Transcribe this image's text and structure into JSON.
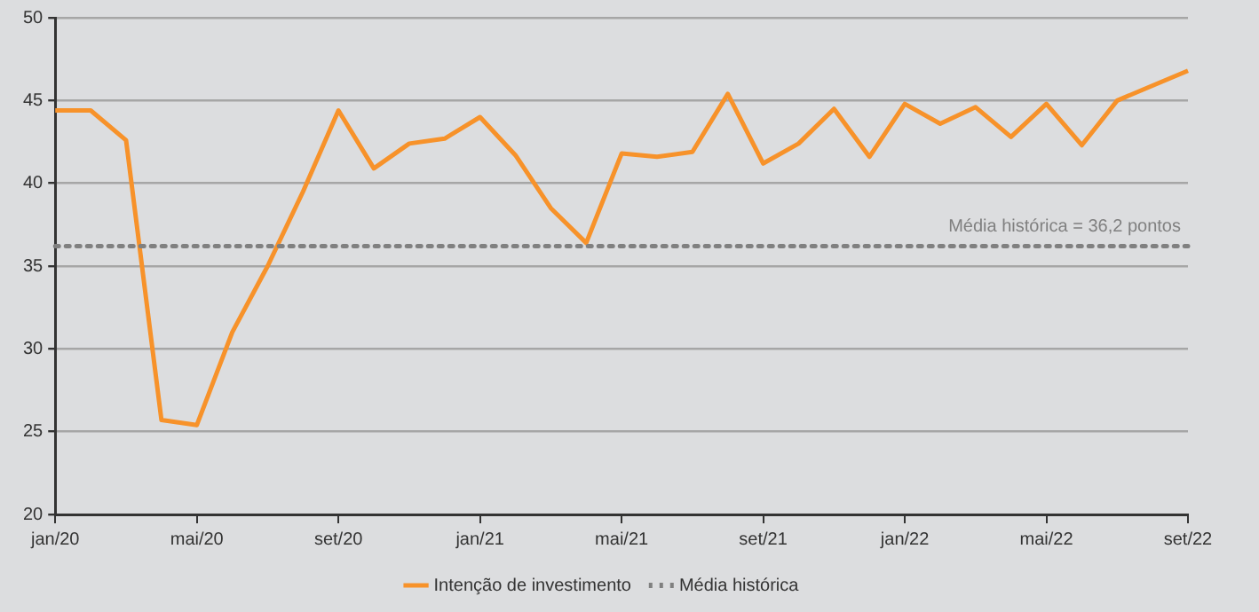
{
  "chart_data": {
    "type": "line",
    "categories": [
      "jan/20",
      null,
      null,
      null,
      "mai/20",
      null,
      null,
      null,
      "set/20",
      null,
      null,
      null,
      "jan/21",
      null,
      null,
      null,
      "mai/21",
      null,
      null,
      null,
      "set/21",
      null,
      null,
      null,
      "jan/22",
      null,
      null,
      null,
      "mai/22",
      null,
      null,
      null,
      "set/22"
    ],
    "series": [
      {
        "name": "Intenção de investimento",
        "color": "#f7922a",
        "values": [
          44.4,
          44.4,
          42.6,
          25.7,
          25.4,
          31,
          35,
          39.5,
          44.4,
          40.9,
          42.4,
          42.7,
          44.0,
          41.7,
          38.5,
          36.4,
          41.8,
          41.6,
          41.9,
          45.4,
          41.2,
          42.4,
          44.5,
          41.6,
          44.8,
          43.6,
          44.6,
          42.8,
          44.8,
          42.3,
          45.0,
          45.9,
          46.8
        ]
      }
    ],
    "ylim": [
      20,
      50
    ],
    "yticks": [
      20,
      25,
      30,
      35,
      40,
      45,
      50
    ],
    "grid": "y",
    "legend": "bottom",
    "marker": "none",
    "line_style": "solid",
    "ref_lines": [
      {
        "axis": "y",
        "value": 36.2,
        "label": "Média histórica",
        "color": "#808080",
        "line_style": "dotted"
      }
    ],
    "annotations": [
      "Média histórica = 36,2 pontos"
    ]
  }
}
